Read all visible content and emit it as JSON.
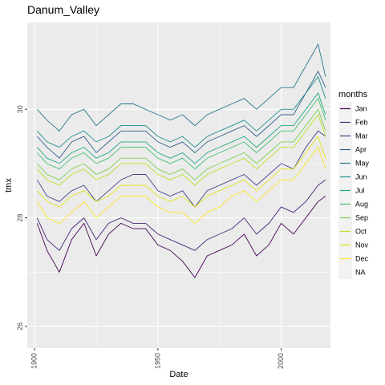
{
  "chart_data": {
    "type": "line",
    "title": "Danum_Valley",
    "xlabel": "Date",
    "ylabel": "tmx",
    "xlim": [
      1897,
      2020
    ],
    "ylim": [
      25.6,
      31.6
    ],
    "x_ticks": [
      1900,
      1950,
      2000
    ],
    "x_tick_labels": [
      "1900",
      "1950",
      "2000"
    ],
    "y_ticks": [
      26,
      28,
      30
    ],
    "y_tick_labels": [
      "26",
      "28",
      "30"
    ],
    "grid": true,
    "legend_title": "months",
    "legend_position": "right",
    "x": [
      1901,
      1905,
      1910,
      1915,
      1920,
      1925,
      1930,
      1935,
      1940,
      1945,
      1950,
      1955,
      1960,
      1965,
      1970,
      1975,
      1980,
      1985,
      1990,
      1995,
      2000,
      2005,
      2010,
      2015,
      2018
    ],
    "series": [
      {
        "name": "Jan",
        "color": "#440154",
        "values": [
          27.9,
          27.4,
          27.0,
          27.6,
          27.9,
          27.3,
          27.7,
          27.9,
          27.8,
          27.8,
          27.5,
          27.4,
          27.2,
          26.9,
          27.3,
          27.4,
          27.5,
          27.7,
          27.3,
          27.5,
          27.9,
          27.7,
          28.0,
          28.3,
          28.4
        ]
      },
      {
        "name": "Feb",
        "color": "#482576",
        "values": [
          28.0,
          27.6,
          27.4,
          27.8,
          28.0,
          27.6,
          27.9,
          28.0,
          27.9,
          27.9,
          27.7,
          27.6,
          27.5,
          27.4,
          27.6,
          27.7,
          27.8,
          28.0,
          27.7,
          27.9,
          28.2,
          28.1,
          28.3,
          28.6,
          28.7
        ]
      },
      {
        "name": "Mar",
        "color": "#414487",
        "values": [
          28.7,
          28.4,
          28.3,
          28.5,
          28.6,
          28.3,
          28.5,
          28.7,
          28.8,
          28.8,
          28.5,
          28.4,
          28.5,
          28.2,
          28.5,
          28.6,
          28.7,
          28.8,
          28.6,
          28.8,
          29.0,
          28.9,
          29.3,
          29.6,
          29.5
        ]
      },
      {
        "name": "Apr",
        "color": "#35608D",
        "values": [
          29.5,
          29.3,
          29.1,
          29.4,
          29.5,
          29.2,
          29.4,
          29.6,
          29.6,
          29.6,
          29.4,
          29.3,
          29.4,
          29.2,
          29.4,
          29.5,
          29.6,
          29.7,
          29.5,
          29.7,
          29.9,
          29.9,
          30.3,
          30.7,
          30.4
        ]
      },
      {
        "name": "May",
        "color": "#2A788E",
        "values": [
          30.0,
          29.8,
          29.6,
          29.9,
          30.0,
          29.7,
          29.9,
          30.1,
          30.1,
          30.0,
          29.9,
          29.8,
          29.9,
          29.7,
          29.9,
          30.0,
          30.1,
          30.2,
          30.0,
          30.2,
          30.4,
          30.4,
          30.8,
          31.2,
          30.6
        ]
      },
      {
        "name": "Jun",
        "color": "#21908C",
        "values": [
          29.6,
          29.4,
          29.3,
          29.5,
          29.6,
          29.4,
          29.5,
          29.7,
          29.7,
          29.7,
          29.5,
          29.4,
          29.5,
          29.3,
          29.5,
          29.6,
          29.7,
          29.8,
          29.6,
          29.8,
          30.0,
          30.0,
          30.3,
          30.6,
          30.2
        ]
      },
      {
        "name": "Jul",
        "color": "#22A884",
        "values": [
          29.3,
          29.1,
          29.0,
          29.2,
          29.3,
          29.1,
          29.2,
          29.4,
          29.4,
          29.4,
          29.2,
          29.1,
          29.2,
          29.0,
          29.2,
          29.3,
          29.4,
          29.5,
          29.3,
          29.5,
          29.7,
          29.7,
          30.0,
          30.3,
          29.9
        ]
      },
      {
        "name": "Aug",
        "color": "#44BF70",
        "values": [
          29.2,
          29.0,
          28.9,
          29.1,
          29.2,
          29.0,
          29.1,
          29.3,
          29.3,
          29.3,
          29.1,
          29.0,
          29.1,
          28.9,
          29.1,
          29.2,
          29.3,
          29.4,
          29.2,
          29.4,
          29.6,
          29.6,
          29.9,
          30.2,
          29.8
        ]
      },
      {
        "name": "Sep",
        "color": "#7AD151",
        "values": [
          29.0,
          28.8,
          28.7,
          28.9,
          29.0,
          28.8,
          28.9,
          29.1,
          29.1,
          29.1,
          28.9,
          28.8,
          28.9,
          28.7,
          28.9,
          29.0,
          29.1,
          29.2,
          29.0,
          29.2,
          29.4,
          29.4,
          29.7,
          30.0,
          29.6
        ]
      },
      {
        "name": "Oct",
        "color": "#BDDF26",
        "values": [
          28.9,
          28.7,
          28.6,
          28.8,
          28.9,
          28.7,
          28.8,
          29.0,
          29.0,
          29.0,
          28.8,
          28.7,
          28.8,
          28.6,
          28.8,
          28.9,
          29.0,
          29.1,
          28.9,
          29.1,
          29.3,
          29.3,
          29.6,
          29.9,
          29.5
        ]
      },
      {
        "name": "Nov",
        "color": "#E4E419",
        "values": [
          28.5,
          28.3,
          28.2,
          28.4,
          28.5,
          28.3,
          28.4,
          28.6,
          28.6,
          28.6,
          28.4,
          28.3,
          28.4,
          28.2,
          28.4,
          28.5,
          28.6,
          28.7,
          28.5,
          28.7,
          28.9,
          28.9,
          29.2,
          29.5,
          29.1
        ]
      },
      {
        "name": "Dec",
        "color": "#FDE725",
        "values": [
          28.3,
          28.0,
          27.9,
          28.1,
          28.3,
          28.0,
          28.2,
          28.4,
          28.4,
          28.4,
          28.2,
          28.1,
          28.1,
          27.9,
          28.1,
          28.2,
          28.4,
          28.5,
          28.3,
          28.5,
          28.7,
          28.7,
          29.0,
          29.3,
          28.9
        ]
      }
    ],
    "legend": [
      {
        "label": "Jan",
        "color": "#440154"
      },
      {
        "label": "Feb",
        "color": "#482576"
      },
      {
        "label": "Mar",
        "color": "#414487"
      },
      {
        "label": "Apr",
        "color": "#35608D"
      },
      {
        "label": "May",
        "color": "#2A788E"
      },
      {
        "label": "Jun",
        "color": "#21908C"
      },
      {
        "label": "Jul",
        "color": "#22A884"
      },
      {
        "label": "Aug",
        "color": "#44BF70"
      },
      {
        "label": "Sep",
        "color": "#7AD151"
      },
      {
        "label": "Oct",
        "color": "#BDDF26"
      },
      {
        "label": "Nov",
        "color": "#E4E419"
      },
      {
        "label": "Dec",
        "color": "#FDE725"
      },
      {
        "label": "NA",
        "color": "#7F7F7F"
      }
    ],
    "panel_background": "#EBEBEB",
    "grid_color": "#FFFFFF"
  }
}
